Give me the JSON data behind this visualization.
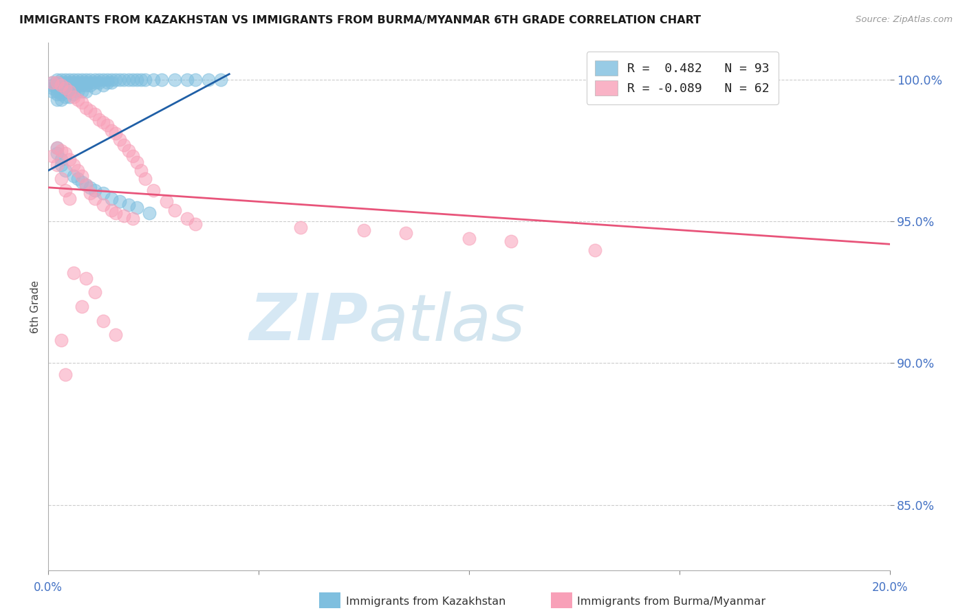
{
  "title": "IMMIGRANTS FROM KAZAKHSTAN VS IMMIGRANTS FROM BURMA/MYANMAR 6TH GRADE CORRELATION CHART",
  "source": "Source: ZipAtlas.com",
  "ylabel": "6th Grade",
  "color_blue": "#7fbfdf",
  "color_pink": "#f8a0b8",
  "color_blue_line": "#1f5fa6",
  "color_pink_line": "#e8547a",
  "watermark_zip": "ZIP",
  "watermark_atlas": "atlas",
  "x_range": [
    0.0,
    0.2
  ],
  "y_range": [
    0.827,
    1.013
  ],
  "y_ticks": [
    0.85,
    0.9,
    0.95,
    1.0
  ],
  "y_tick_labels": [
    "85.0%",
    "90.0%",
    "95.0%",
    "100.0%"
  ],
  "x_ticks": [
    0.0,
    0.05,
    0.1,
    0.15,
    0.2
  ],
  "x_tick_labels_bottom": [
    "0.0%",
    "",
    "",
    "",
    "20.0%"
  ],
  "blue_line_x": [
    0.0,
    0.043
  ],
  "blue_line_y": [
    0.968,
    1.002
  ],
  "pink_line_x": [
    0.0,
    0.2
  ],
  "pink_line_y": [
    0.962,
    0.942
  ],
  "blue_x": [
    0.001,
    0.001,
    0.001,
    0.001,
    0.002,
    0.002,
    0.002,
    0.002,
    0.002,
    0.002,
    0.002,
    0.003,
    0.003,
    0.003,
    0.003,
    0.003,
    0.003,
    0.003,
    0.004,
    0.004,
    0.004,
    0.004,
    0.004,
    0.004,
    0.005,
    0.005,
    0.005,
    0.005,
    0.005,
    0.005,
    0.006,
    0.006,
    0.006,
    0.006,
    0.006,
    0.007,
    0.007,
    0.007,
    0.007,
    0.008,
    0.008,
    0.008,
    0.008,
    0.009,
    0.009,
    0.009,
    0.009,
    0.01,
    0.01,
    0.01,
    0.011,
    0.011,
    0.011,
    0.012,
    0.012,
    0.013,
    0.013,
    0.014,
    0.014,
    0.015,
    0.015,
    0.016,
    0.017,
    0.018,
    0.019,
    0.02,
    0.021,
    0.022,
    0.023,
    0.025,
    0.027,
    0.03,
    0.033,
    0.035,
    0.038,
    0.041,
    0.002,
    0.002,
    0.003,
    0.003,
    0.004,
    0.006,
    0.007,
    0.008,
    0.009,
    0.01,
    0.011,
    0.013,
    0.015,
    0.017,
    0.019,
    0.021,
    0.024
  ],
  "blue_y": [
    0.999,
    0.998,
    0.997,
    0.996,
    1.0,
    0.999,
    0.998,
    0.997,
    0.996,
    0.995,
    0.993,
    1.0,
    0.999,
    0.998,
    0.997,
    0.996,
    0.995,
    0.993,
    1.0,
    0.999,
    0.998,
    0.997,
    0.996,
    0.994,
    1.0,
    0.999,
    0.998,
    0.997,
    0.996,
    0.994,
    1.0,
    0.999,
    0.998,
    0.997,
    0.995,
    1.0,
    0.999,
    0.998,
    0.996,
    1.0,
    0.999,
    0.998,
    0.996,
    1.0,
    0.999,
    0.998,
    0.996,
    1.0,
    0.999,
    0.998,
    1.0,
    0.999,
    0.997,
    1.0,
    0.999,
    1.0,
    0.998,
    1.0,
    0.999,
    1.0,
    0.999,
    1.0,
    1.0,
    1.0,
    1.0,
    1.0,
    1.0,
    1.0,
    1.0,
    1.0,
    1.0,
    1.0,
    1.0,
    1.0,
    1.0,
    1.0,
    0.976,
    0.974,
    0.972,
    0.97,
    0.968,
    0.966,
    0.965,
    0.964,
    0.963,
    0.962,
    0.961,
    0.96,
    0.958,
    0.957,
    0.956,
    0.955,
    0.953
  ],
  "pink_x": [
    0.001,
    0.001,
    0.002,
    0.002,
    0.002,
    0.003,
    0.003,
    0.003,
    0.004,
    0.004,
    0.004,
    0.005,
    0.005,
    0.005,
    0.006,
    0.006,
    0.007,
    0.007,
    0.008,
    0.008,
    0.009,
    0.009,
    0.01,
    0.01,
    0.011,
    0.011,
    0.012,
    0.013,
    0.013,
    0.014,
    0.015,
    0.015,
    0.016,
    0.016,
    0.017,
    0.018,
    0.018,
    0.019,
    0.02,
    0.02,
    0.021,
    0.022,
    0.023,
    0.025,
    0.028,
    0.03,
    0.033,
    0.035,
    0.06,
    0.075,
    0.085,
    0.1,
    0.11,
    0.13,
    0.003,
    0.004,
    0.006,
    0.008,
    0.009,
    0.011,
    0.013,
    0.016
  ],
  "pink_y": [
    0.999,
    0.973,
    0.999,
    0.976,
    0.97,
    0.998,
    0.975,
    0.965,
    0.997,
    0.974,
    0.961,
    0.996,
    0.972,
    0.958,
    0.994,
    0.97,
    0.993,
    0.968,
    0.992,
    0.966,
    0.99,
    0.963,
    0.989,
    0.96,
    0.988,
    0.958,
    0.986,
    0.985,
    0.956,
    0.984,
    0.982,
    0.954,
    0.981,
    0.953,
    0.979,
    0.977,
    0.952,
    0.975,
    0.973,
    0.951,
    0.971,
    0.968,
    0.965,
    0.961,
    0.957,
    0.954,
    0.951,
    0.949,
    0.948,
    0.947,
    0.946,
    0.944,
    0.943,
    0.94,
    0.908,
    0.896,
    0.932,
    0.92,
    0.93,
    0.925,
    0.915,
    0.91
  ]
}
